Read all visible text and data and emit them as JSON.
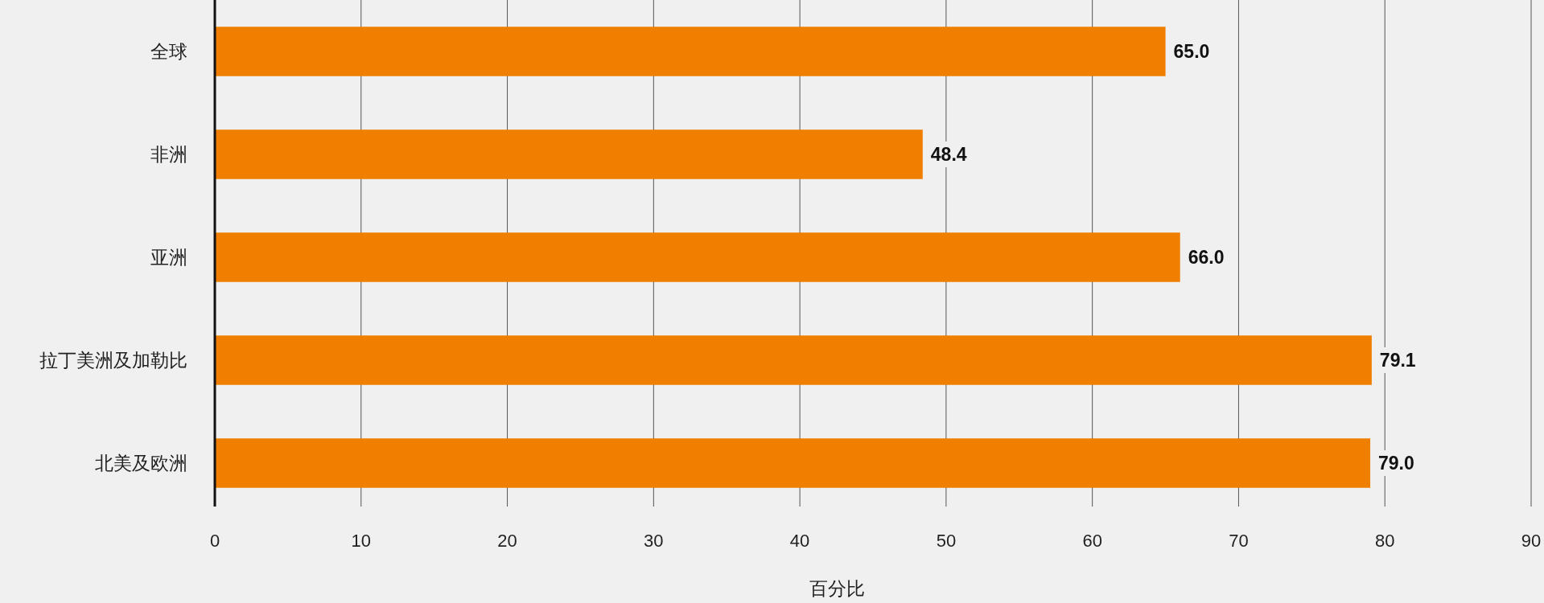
{
  "chart_data": {
    "type": "bar",
    "orientation": "horizontal",
    "categories": [
      "全球",
      "非洲",
      "亚洲",
      "拉丁美洲及加勒比",
      "北美及欧洲"
    ],
    "values": [
      65.0,
      48.4,
      66.0,
      79.1,
      79.0
    ],
    "value_labels": [
      "65.0",
      "48.4",
      "66.0",
      "79.1",
      "79.0"
    ],
    "color": "#f07f00",
    "xlim": [
      0,
      90
    ],
    "xticks": [
      0,
      10,
      20,
      30,
      40,
      50,
      60,
      70,
      80,
      90
    ],
    "xlabel": "百分比",
    "grid": "x"
  }
}
